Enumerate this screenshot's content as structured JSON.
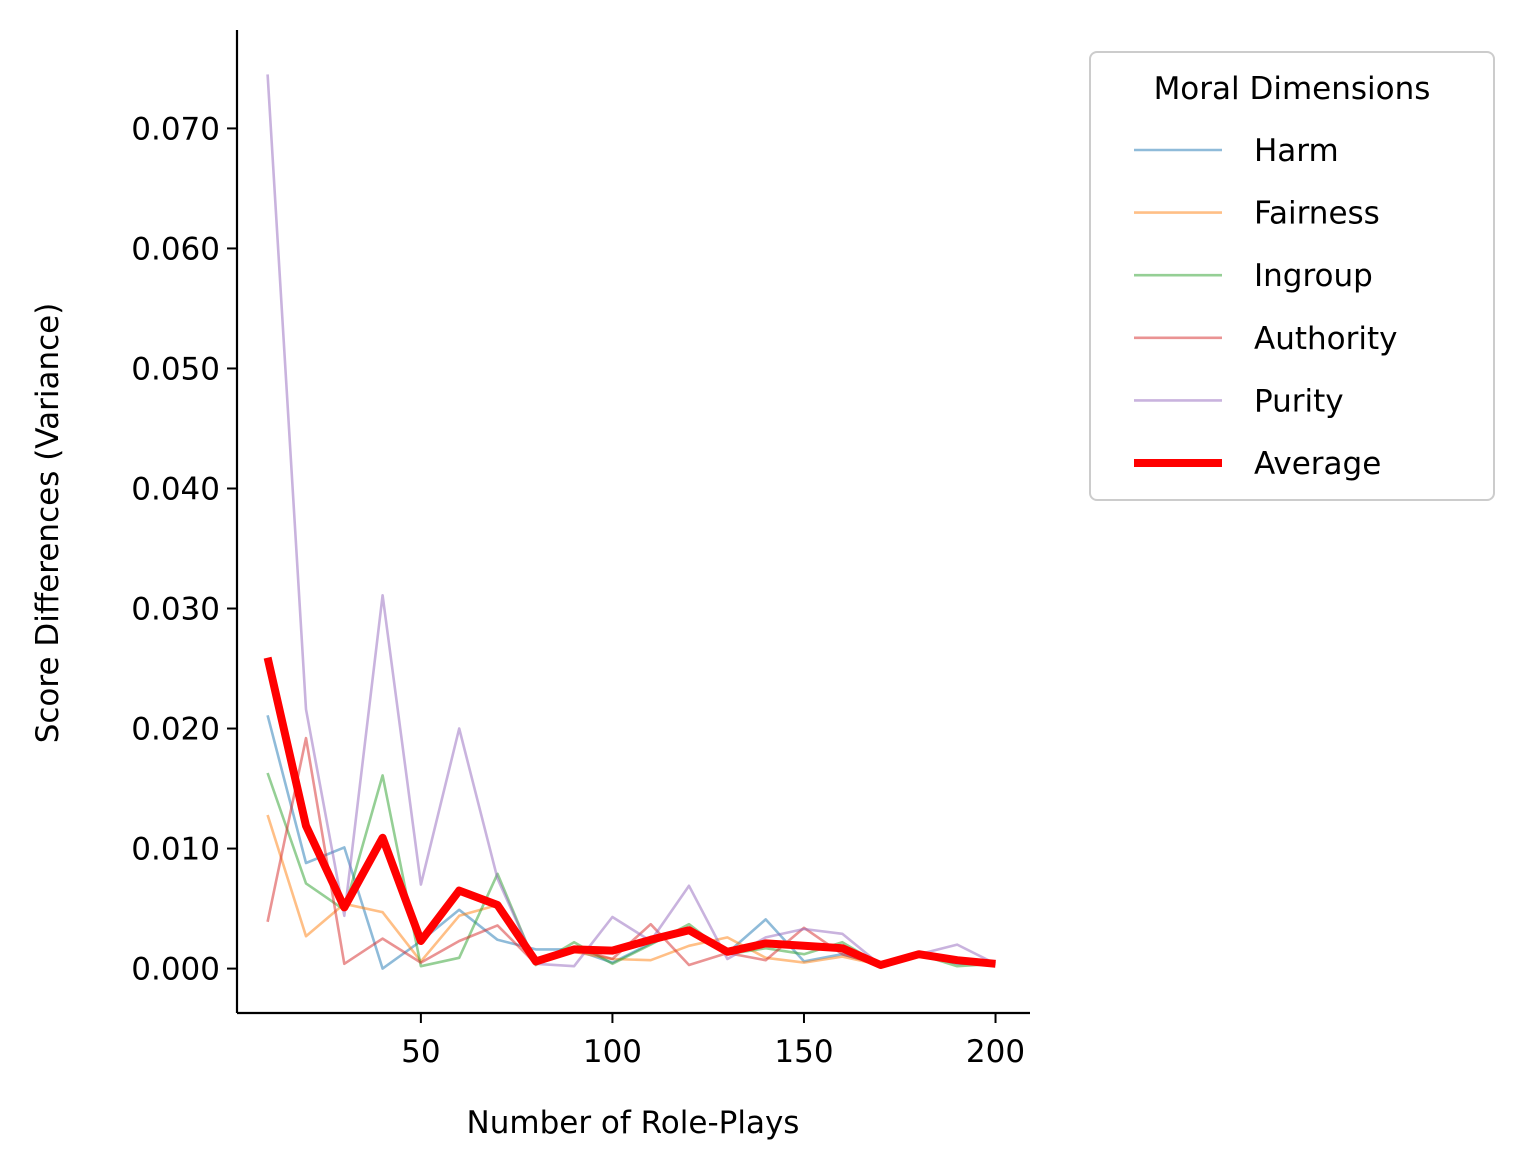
{
  "chart_data": {
    "type": "line",
    "xlabel": "Number of Role-Plays",
    "ylabel": "Score Differences (Variance)",
    "x": [
      10,
      20,
      30,
      40,
      50,
      60,
      70,
      80,
      90,
      100,
      110,
      120,
      130,
      140,
      150,
      160,
      170,
      180,
      190,
      200
    ],
    "xlim": [
      2,
      209
    ],
    "ylim": [
      -0.0037,
      0.0782
    ],
    "xticks": [
      50,
      100,
      150,
      200
    ],
    "xtick_labels": [
      "50",
      "100",
      "150",
      "200"
    ],
    "yticks": [
      0.0,
      0.01,
      0.02,
      0.03,
      0.04,
      0.05,
      0.06,
      0.07
    ],
    "ytick_labels": [
      "0.000",
      "0.010",
      "0.020",
      "0.030",
      "0.040",
      "0.050",
      "0.060",
      "0.070"
    ],
    "grid": false,
    "legend": {
      "title": "Moral Dimensions",
      "placement": "outside-top-right"
    },
    "series": [
      {
        "name": "Harm",
        "color": "#1f77b4",
        "values": [
          0.0211,
          0.0088,
          0.0101,
          0.0,
          0.0023,
          0.0049,
          0.0024,
          0.0016,
          0.0016,
          0.0005,
          0.0021,
          0.0032,
          0.0013,
          0.0041,
          0.0006,
          0.0012,
          0.0003,
          0.0012,
          0.0004,
          0.0004
        ]
      },
      {
        "name": "Fairness",
        "color": "#ff7f0e",
        "values": [
          0.0128,
          0.0027,
          0.0054,
          0.0047,
          0.0006,
          0.0044,
          0.0053,
          0.0004,
          0.0014,
          0.0008,
          0.0007,
          0.0019,
          0.0026,
          0.0009,
          0.0005,
          0.001,
          0.0003,
          0.001,
          0.0005,
          0.0004
        ]
      },
      {
        "name": "Ingroup",
        "color": "#2ca02c",
        "values": [
          0.0163,
          0.0071,
          0.0049,
          0.0161,
          0.0002,
          0.0009,
          0.0079,
          0.0003,
          0.0022,
          0.0004,
          0.002,
          0.0037,
          0.0012,
          0.0017,
          0.0012,
          0.0022,
          0.0003,
          0.0012,
          0.0002,
          0.0004
        ]
      },
      {
        "name": "Authority",
        "color": "#d62728",
        "values": [
          0.0039,
          0.0192,
          0.0004,
          0.0025,
          0.0005,
          0.0023,
          0.0036,
          0.0004,
          0.0017,
          0.0008,
          0.0037,
          0.0003,
          0.0013,
          0.0007,
          0.0034,
          0.0012,
          0.0003,
          0.0012,
          0.0005,
          0.0004
        ]
      },
      {
        "name": "Purity",
        "color": "#9467bd",
        "values": [
          0.0745,
          0.0216,
          0.0044,
          0.0311,
          0.007,
          0.02,
          0.0075,
          0.0004,
          0.0002,
          0.0043,
          0.0023,
          0.0069,
          0.0008,
          0.0026,
          0.0033,
          0.0029,
          0.0003,
          0.0012,
          0.002,
          0.0004
        ]
      },
      {
        "name": "Average",
        "color": "#ff0000",
        "values": [
          0.0259,
          0.0119,
          0.0051,
          0.0109,
          0.0023,
          0.0065,
          0.0053,
          0.0006,
          0.0016,
          0.0015,
          0.0024,
          0.0032,
          0.0014,
          0.0021,
          0.0019,
          0.0017,
          0.0003,
          0.0012,
          0.0007,
          0.0004
        ]
      }
    ]
  }
}
